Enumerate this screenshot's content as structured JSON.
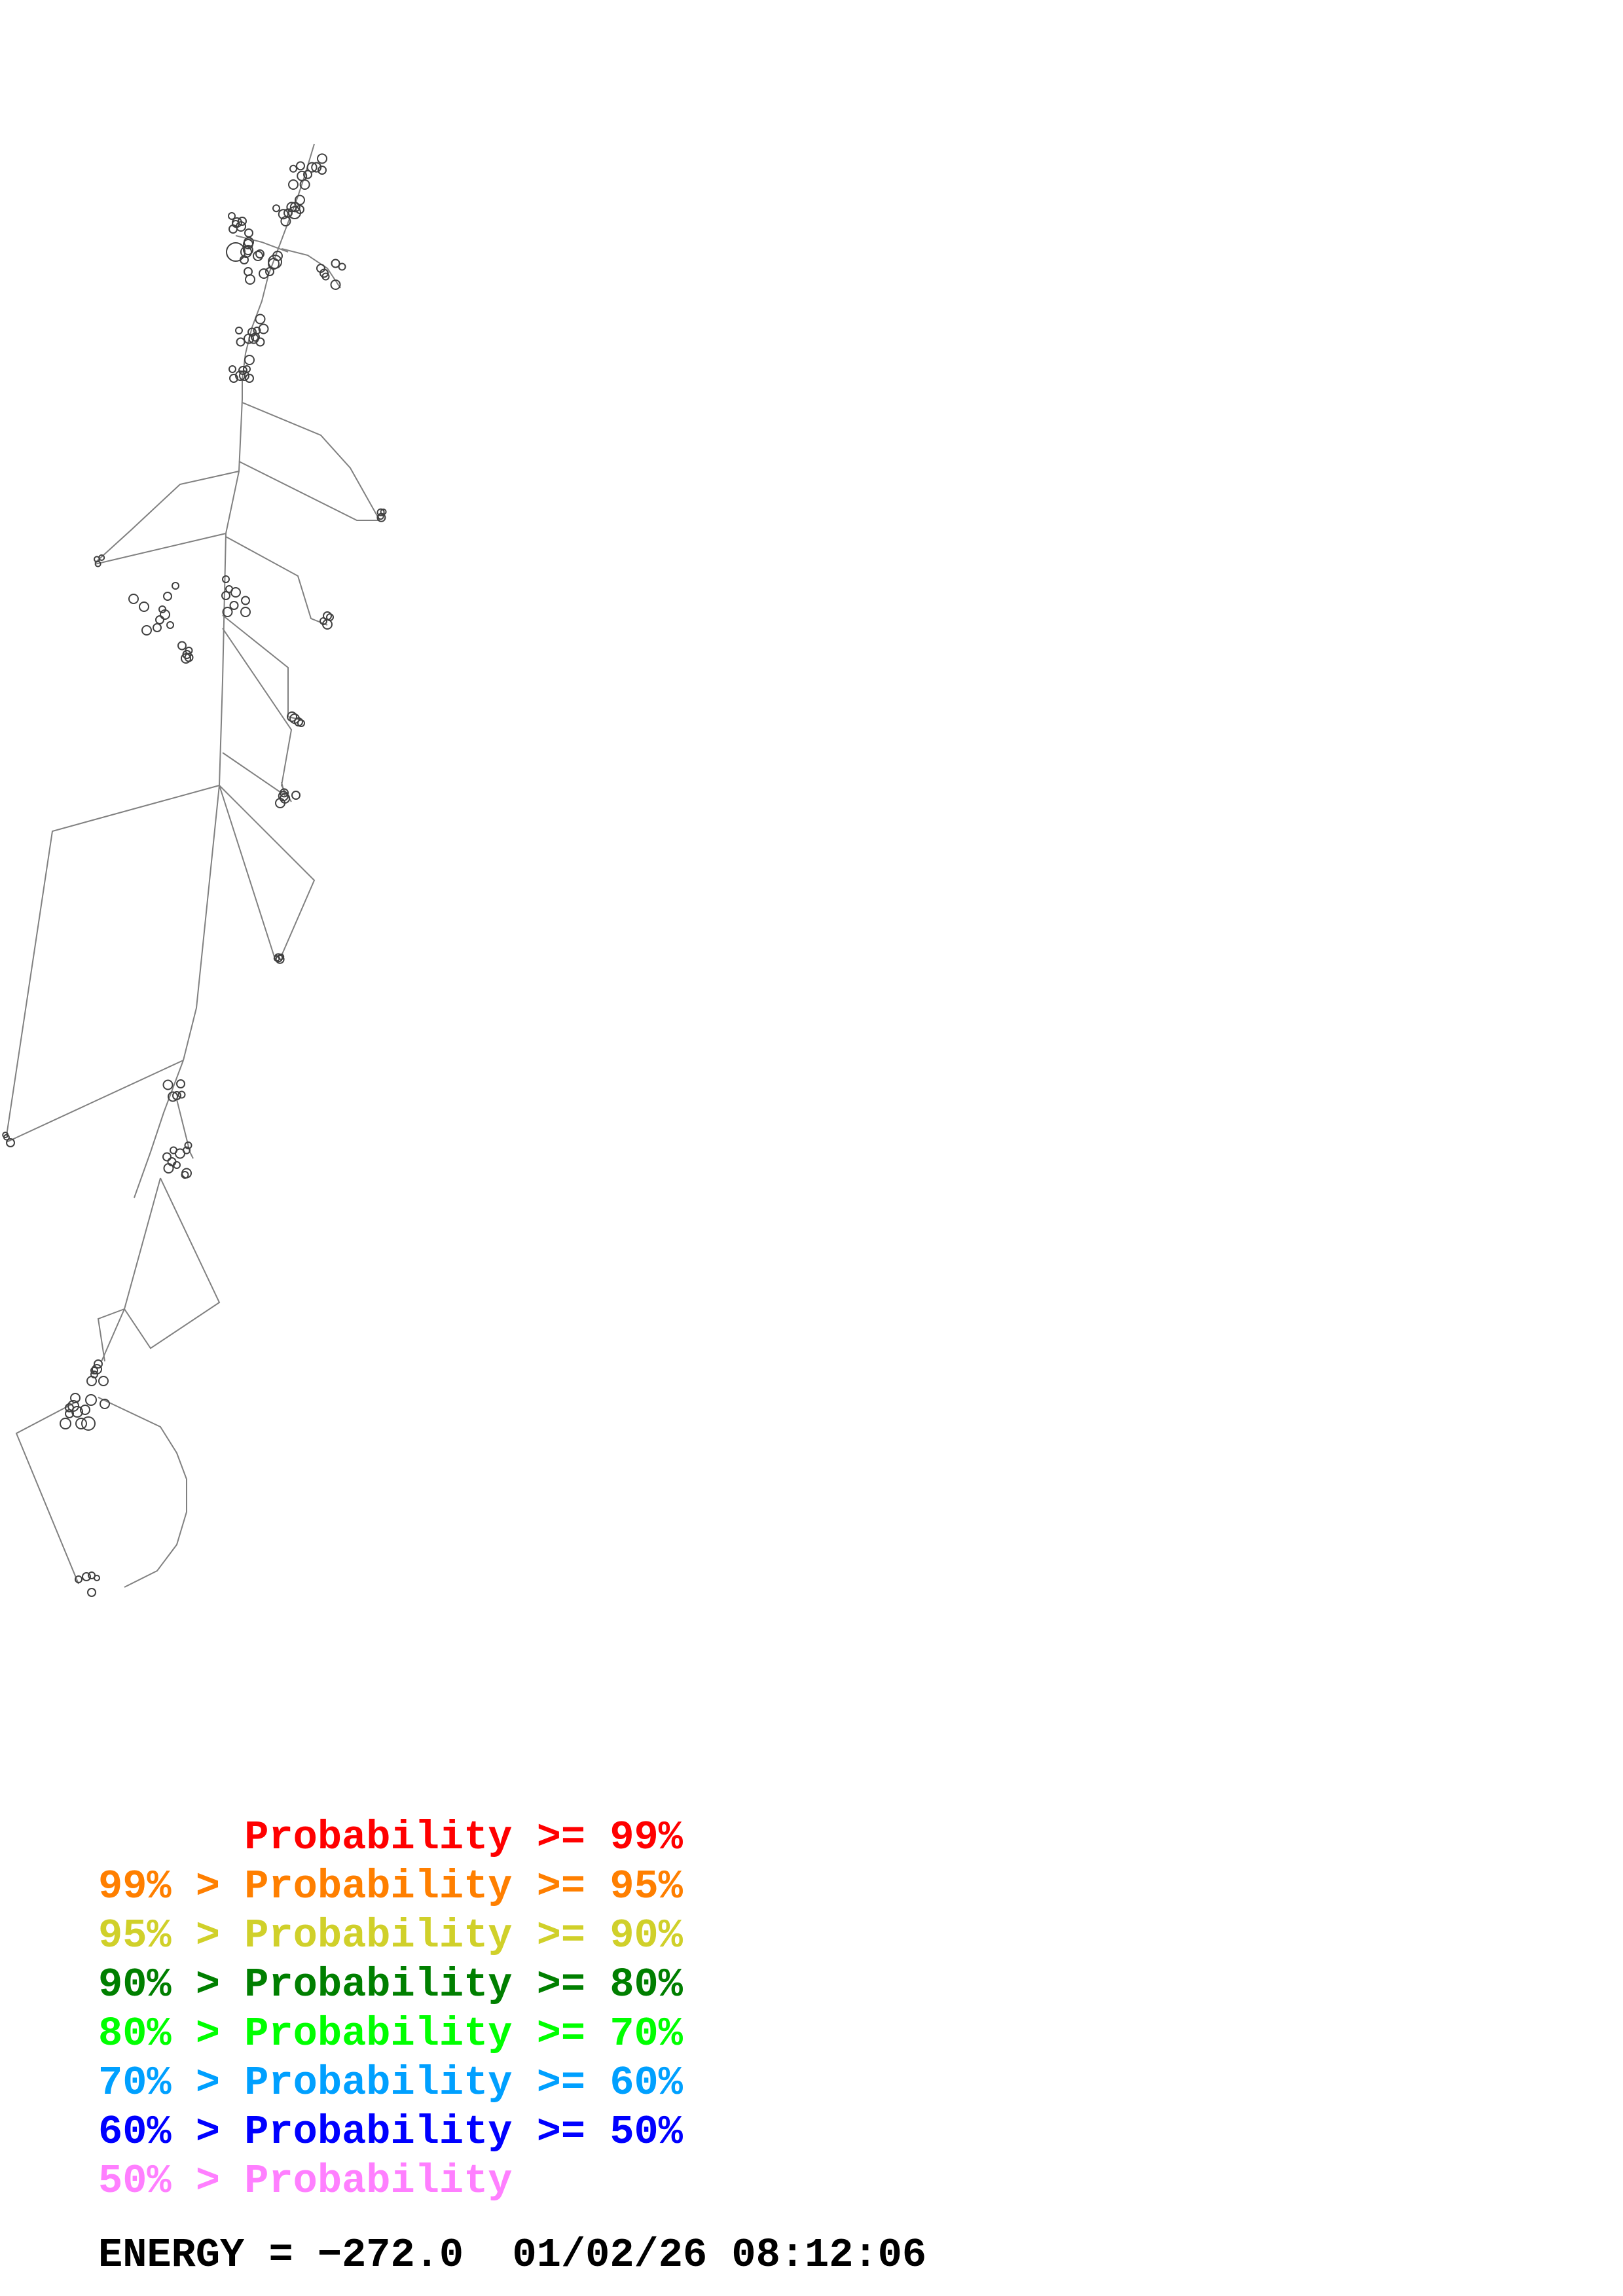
{
  "legend": [
    {
      "prefix": "",
      "text": "Probability >= 99%",
      "color": "#ff0000"
    },
    {
      "prefix": "99% > ",
      "text": "Probability >= 95%",
      "color": "#ff7f00"
    },
    {
      "prefix": "95% > ",
      "text": "Probability >= 90%",
      "color": "#d0d02a"
    },
    {
      "prefix": "90% > ",
      "text": "Probability >= 80%",
      "color": "#007f00"
    },
    {
      "prefix": "80% > ",
      "text": "Probability >= 70%",
      "color": "#00ff00"
    },
    {
      "prefix": "70% > ",
      "text": "Probability >= 60%",
      "color": "#00a0ff"
    },
    {
      "prefix": "60% > ",
      "text": "Probability >= 50%",
      "color": "#0000ff"
    },
    {
      "prefix": "50% > ",
      "text": "Probability",
      "color": "#ff7fff"
    }
  ],
  "energy": {
    "label": "ENERGY = ",
    "value": "−272.0",
    "datetime": "01/02/26 08:12:06"
  },
  "colors": {
    "backbone": "#808080",
    "loops": "#404040",
    "text": "#000000"
  }
}
